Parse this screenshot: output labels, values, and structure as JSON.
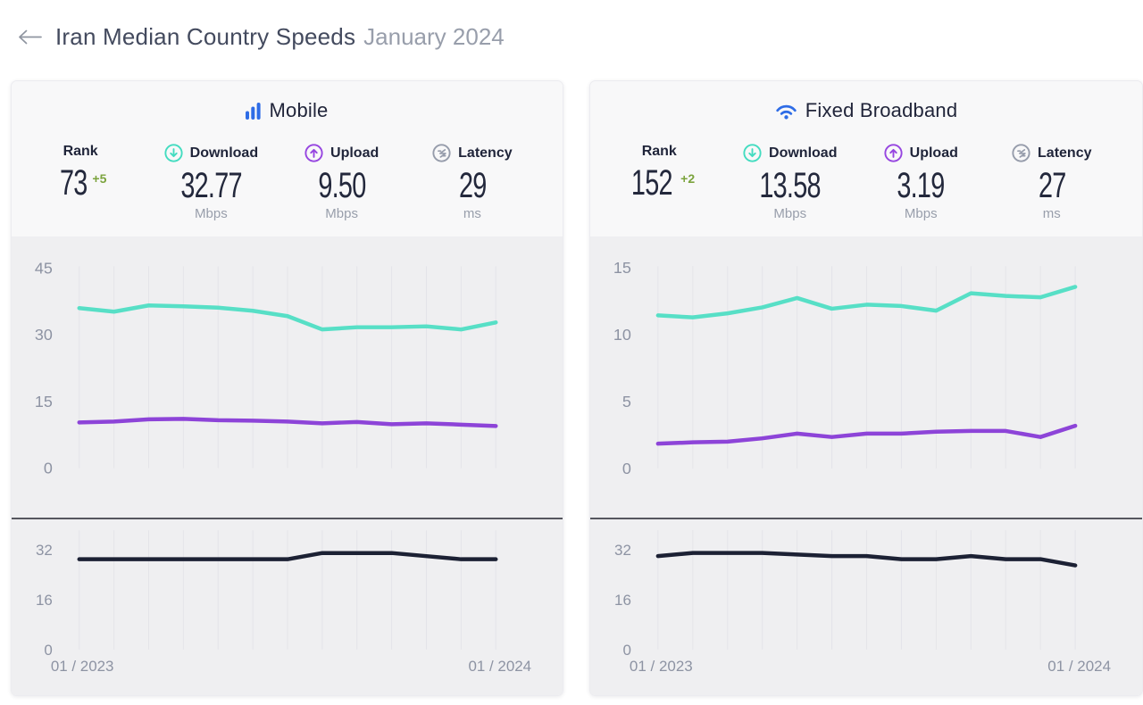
{
  "header": {
    "back_icon": "left-arrow",
    "title": "Iran Median Country Speeds",
    "period": "January 2024"
  },
  "colors": {
    "brand_blue": "#2e6ce6",
    "download_teal": "#57dfc6",
    "upload_purple": "#8d44d8",
    "latency_navy": "#1c2134",
    "rank_delta_green": "#7ba33d",
    "grid_line": "#e4e4e9",
    "axis_text": "#8d93a3",
    "chart_bg": "#efeff1",
    "card_bg": "#f8f8f9",
    "divider": "#55565e"
  },
  "cards": [
    {
      "title": "Mobile",
      "icon": "mobile-signal-bars-icon",
      "stats": [
        {
          "label": "Rank",
          "value": "73",
          "delta": "+5",
          "unit": ""
        },
        {
          "label": "Download",
          "icon": "download-arrow-icon",
          "value": "32.77",
          "delta": "",
          "unit": "Mbps"
        },
        {
          "label": "Upload",
          "icon": "upload-arrow-icon",
          "value": "9.50",
          "delta": "",
          "unit": "Mbps"
        },
        {
          "label": "Latency",
          "icon": "latency-icon",
          "value": "29",
          "delta": "",
          "unit": "ms"
        }
      ]
    },
    {
      "title": "Fixed Broadband",
      "icon": "wifi-icon",
      "stats": [
        {
          "label": "Rank",
          "value": "152",
          "delta": "+2",
          "unit": ""
        },
        {
          "label": "Download",
          "icon": "download-arrow-icon",
          "value": "13.58",
          "delta": "",
          "unit": "Mbps"
        },
        {
          "label": "Upload",
          "icon": "upload-arrow-icon",
          "value": "3.19",
          "delta": "",
          "unit": "Mbps"
        },
        {
          "label": "Latency",
          "icon": "latency-icon",
          "value": "27",
          "delta": "",
          "unit": "ms"
        }
      ]
    }
  ],
  "chart_data": [
    {
      "type": "line",
      "title": "Mobile",
      "x_axis": {
        "start_label": "01 / 2023",
        "end_label": "01 / 2024",
        "points": 13,
        "unit": "month"
      },
      "gridlines": "vertical-monthly",
      "legend": "none",
      "panels": [
        {
          "name": "speeds",
          "ylabel": "Mbps",
          "ylim": [
            0,
            45
          ],
          "yticks": [
            45,
            30,
            15,
            0
          ],
          "series": [
            {
              "name": "Download",
              "color": "#57dfc6",
              "values": [
                36.0,
                35.2,
                36.6,
                36.4,
                36.1,
                35.4,
                34.2,
                31.2,
                31.7,
                31.7,
                31.9,
                31.2,
                32.77
              ]
            },
            {
              "name": "Upload",
              "color": "#8d44d8",
              "values": [
                10.3,
                10.5,
                11.0,
                11.1,
                10.8,
                10.7,
                10.5,
                10.1,
                10.4,
                9.9,
                10.1,
                9.8,
                9.5
              ]
            }
          ]
        },
        {
          "name": "latency",
          "ylabel": "ms",
          "ylim": [
            0,
            32
          ],
          "yticks": [
            32,
            16,
            0
          ],
          "series": [
            {
              "name": "Latency",
              "color": "#1c2134",
              "values": [
                29,
                29,
                29,
                29,
                29,
                29,
                29,
                31,
                31,
                31,
                30,
                29,
                29
              ]
            }
          ]
        }
      ]
    },
    {
      "type": "line",
      "title": "Fixed Broadband",
      "x_axis": {
        "start_label": "01 / 2023",
        "end_label": "01 / 2024",
        "points": 13,
        "unit": "month"
      },
      "gridlines": "vertical-monthly",
      "legend": "none",
      "panels": [
        {
          "name": "speeds",
          "ylabel": "Mbps",
          "ylim": [
            0,
            15
          ],
          "yticks": [
            15,
            10,
            5,
            0
          ],
          "series": [
            {
              "name": "Download",
              "color": "#57dfc6",
              "values": [
                11.45,
                11.3,
                11.6,
                12.05,
                12.75,
                11.95,
                12.25,
                12.15,
                11.8,
                13.1,
                12.9,
                12.8,
                13.58
              ]
            },
            {
              "name": "Upload",
              "color": "#8d44d8",
              "values": [
                1.85,
                1.95,
                2.0,
                2.25,
                2.6,
                2.35,
                2.6,
                2.6,
                2.75,
                2.8,
                2.8,
                2.35,
                3.19
              ]
            }
          ]
        },
        {
          "name": "latency",
          "ylabel": "ms",
          "ylim": [
            0,
            32
          ],
          "yticks": [
            32,
            16,
            0
          ],
          "series": [
            {
              "name": "Latency",
              "color": "#1c2134",
              "values": [
                30,
                31,
                31,
                31,
                30.5,
                30,
                30,
                29,
                29,
                30,
                29,
                29,
                27
              ]
            }
          ]
        }
      ]
    }
  ]
}
